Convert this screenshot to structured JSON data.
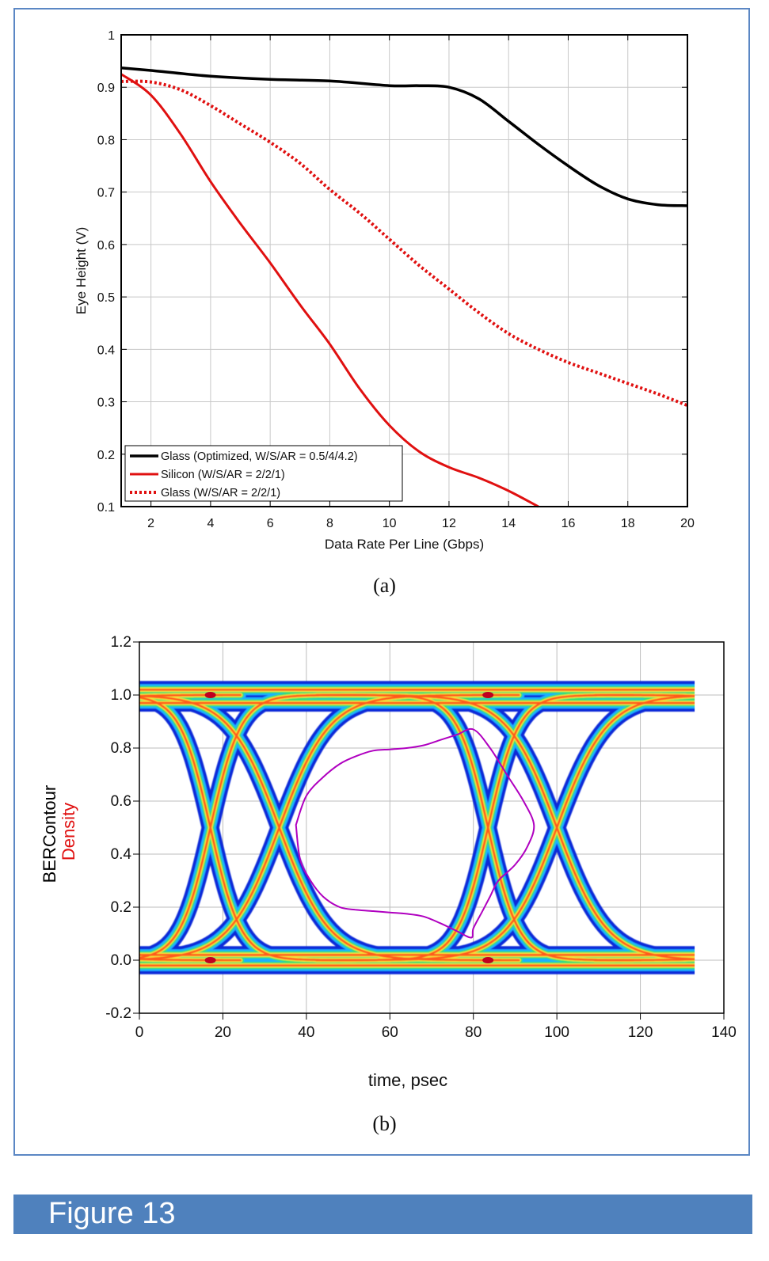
{
  "figure_label": "Figure 13",
  "captions": {
    "a": "(a)",
    "b": "(b)"
  },
  "chart_data": [
    {
      "type": "line",
      "xlabel": "Data Rate Per Line (Gbps)",
      "ylabel": "Eye Height (V)",
      "xlim": [
        1,
        20
      ],
      "ylim": [
        0.1,
        1
      ],
      "xticks": [
        2,
        4,
        6,
        8,
        10,
        12,
        14,
        16,
        18,
        20
      ],
      "yticks": [
        0.1,
        0.2,
        0.3,
        0.4,
        0.5,
        0.6,
        0.7,
        0.8,
        0.9,
        1
      ],
      "grid": true,
      "legend_position": "bottom-left",
      "series": [
        {
          "name": "Glass (Optimized, W/S/AR = 0.5/4/4.2)",
          "color": "#000000",
          "style": "solid",
          "x": [
            1,
            2,
            4,
            6,
            8,
            10,
            11,
            12,
            13,
            14,
            15,
            16,
            17,
            18,
            19,
            20
          ],
          "y": [
            0.937,
            0.932,
            0.921,
            0.915,
            0.912,
            0.903,
            0.903,
            0.9,
            0.878,
            0.835,
            0.791,
            0.75,
            0.713,
            0.687,
            0.676,
            0.674
          ]
        },
        {
          "name": "Silicon (W/S/AR = 2/2/1)",
          "color": "#e01010",
          "style": "solid",
          "x": [
            1,
            2,
            3,
            4,
            5,
            6,
            7,
            8,
            9,
            10,
            11,
            12,
            13,
            14,
            15
          ],
          "y": [
            0.925,
            0.885,
            0.81,
            0.72,
            0.64,
            0.565,
            0.485,
            0.41,
            0.325,
            0.255,
            0.205,
            0.175,
            0.155,
            0.13,
            0.1
          ]
        },
        {
          "name": "Glass (W/S/AR = 2/2/1)",
          "color": "#e01010",
          "style": "dotted",
          "x": [
            1,
            2,
            3,
            4,
            5,
            6,
            7,
            8,
            9,
            10,
            11,
            12,
            13,
            14,
            15,
            16,
            17,
            18,
            19,
            20
          ],
          "y": [
            0.911,
            0.91,
            0.895,
            0.865,
            0.83,
            0.795,
            0.755,
            0.705,
            0.66,
            0.61,
            0.56,
            0.515,
            0.47,
            0.43,
            0.4,
            0.375,
            0.355,
            0.335,
            0.315,
            0.293
          ]
        }
      ]
    },
    {
      "type": "eye-diagram",
      "xlabel": "time, psec",
      "ylabel_parts": [
        {
          "text": "BERContour",
          "color": "#000000"
        },
        {
          "text": "Density",
          "color": "#e01010"
        }
      ],
      "xlim": [
        0,
        140
      ],
      "ylim": [
        -0.2,
        1.2
      ],
      "xticks": [
        0,
        20,
        40,
        60,
        80,
        100,
        120,
        140
      ],
      "yticks": [
        "-0.2",
        "0.0",
        "0.2",
        "0.4",
        "0.6",
        "0.8",
        "1.0",
        "1.2"
      ],
      "grid": true,
      "data_extent_x": [
        0,
        133
      ],
      "unit_interval_psec": 66.7,
      "crossings_psec": [
        17,
        33.5,
        83.5,
        100
      ],
      "levels": [
        0.0,
        1.0
      ],
      "contour_color": "#b000c0",
      "contour": {
        "x": [
          37.5,
          40,
          44,
          48,
          52,
          56,
          60,
          64,
          68,
          72,
          76,
          80,
          84,
          88,
          92,
          94.5,
          93,
          90,
          86,
          84,
          82,
          80,
          79.5,
          76,
          72,
          68,
          64,
          60,
          56,
          52,
          48,
          44,
          41,
          38.5,
          37.5
        ],
        "y": [
          0.51,
          0.62,
          0.69,
          0.74,
          0.77,
          0.79,
          0.795,
          0.8,
          0.81,
          0.83,
          0.85,
          0.87,
          0.8,
          0.7,
          0.6,
          0.51,
          0.43,
          0.36,
          0.3,
          0.24,
          0.18,
          0.12,
          0.085,
          0.11,
          0.14,
          0.165,
          0.175,
          0.18,
          0.185,
          0.19,
          0.2,
          0.24,
          0.3,
          0.38,
          0.51
        ]
      }
    }
  ]
}
